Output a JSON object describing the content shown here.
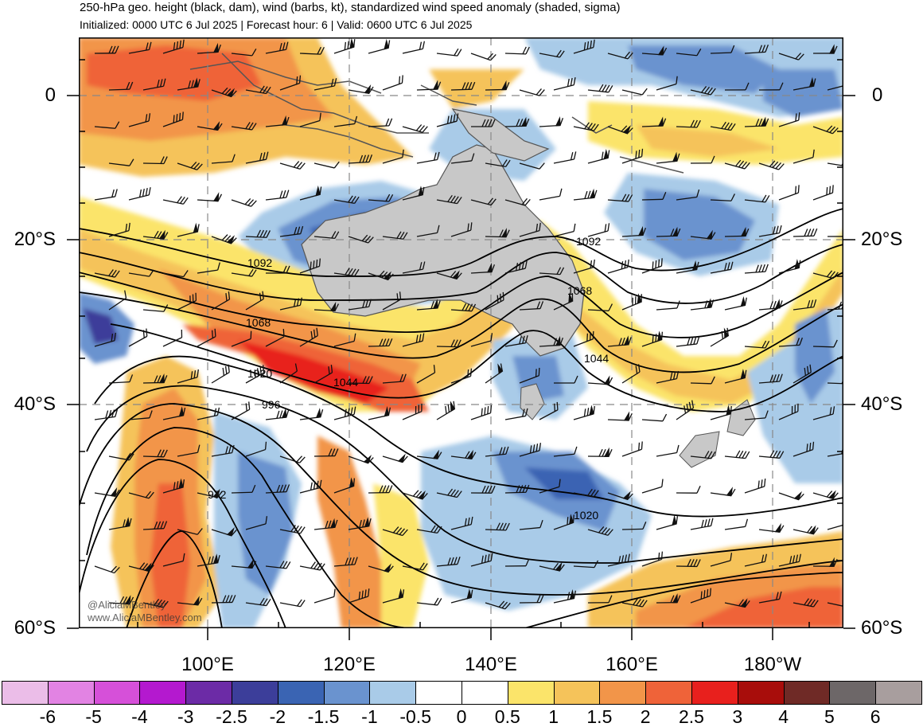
{
  "header": {
    "title": "250-hPa geo. height (black, dam), wind (barbs, kt), standardized wind speed anomaly (shaded, sigma)",
    "subtitle": "Initialized: 0000 UTC 6 Jul 2025 | Forecast hour: 6 | Valid: 0600 UTC 6 Jul 2025"
  },
  "map": {
    "lat_labels_left": [
      "0",
      "20°S",
      "40°S",
      "60°S"
    ],
    "lat_labels_right": [
      "0",
      "20°S",
      "40°S",
      "60°S"
    ],
    "lon_labels": [
      "100°E",
      "120°E",
      "140°E",
      "160°E",
      "180°W"
    ],
    "contour_labels": [
      "1092",
      "1092",
      "1068",
      "1068",
      "1044",
      "1044",
      "1020",
      "1020",
      "996",
      "972"
    ],
    "credits": [
      "@AliciaMBentley",
      "www.AliciaMBentley.com"
    ]
  },
  "colorbar": {
    "colors": [
      "#ebbde8",
      "#e283e3",
      "#d650d9",
      "#b419cf",
      "#6c2ba6",
      "#3c3e9a",
      "#3a64b3",
      "#6a93cf",
      "#a9cbe8",
      "#ffffff",
      "#ffffff",
      "#fbe46a",
      "#f5c35a",
      "#f29549",
      "#ef6339",
      "#e8201d",
      "#a80d0b",
      "#6f2a26",
      "#6d6768",
      "#a89e9e"
    ],
    "tick_labels": [
      "-6",
      "-5",
      "-4",
      "-3",
      "-2.5",
      "-2",
      "-1.5",
      "-1",
      "-0.5",
      "0",
      "0.5",
      "1",
      "1.5",
      "2",
      "2.5",
      "3",
      "4",
      "5",
      "6"
    ]
  }
}
